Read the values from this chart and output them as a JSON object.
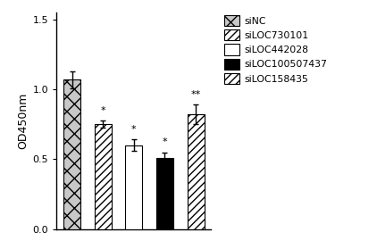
{
  "categories": [
    "siNC",
    "siLOC730101",
    "siLOC442028",
    "siLOC100507437",
    "siLOC158435"
  ],
  "values": [
    1.07,
    0.75,
    0.6,
    0.51,
    0.82
  ],
  "errors": [
    0.06,
    0.025,
    0.04,
    0.04,
    0.07
  ],
  "annotations": [
    "",
    "*",
    "*",
    "*",
    "**"
  ],
  "ylabel": "OD450nm",
  "ylim": [
    0.0,
    1.55
  ],
  "yticks": [
    0.0,
    0.5,
    1.0,
    1.5
  ],
  "legend_labels": [
    "siNC",
    "siLOC730101",
    "siLOC442028",
    "siLOC100507437",
    "siLOC158435"
  ],
  "annotation_fontsize": 8,
  "bar_width": 0.55,
  "figsize": [
    4.22,
    2.79
  ],
  "dpi": 100
}
